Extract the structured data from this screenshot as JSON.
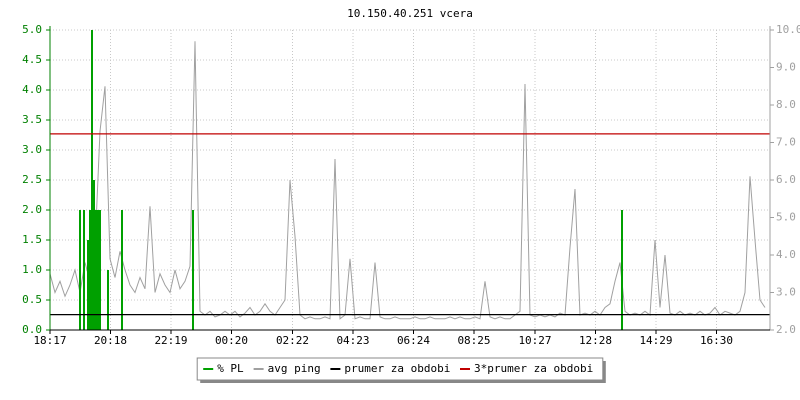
{
  "chart_data": {
    "type": "line",
    "title": "10.150.40.251 vcera",
    "xlim": [
      0,
      1440
    ],
    "xticks": [
      {
        "value": 0,
        "label": "18:17"
      },
      {
        "value": 121,
        "label": "20:18"
      },
      {
        "value": 242,
        "label": "22:19"
      },
      {
        "value": 363,
        "label": "00:20"
      },
      {
        "value": 485,
        "label": "02:22"
      },
      {
        "value": 606,
        "label": "04:23"
      },
      {
        "value": 727,
        "label": "06:24"
      },
      {
        "value": 848,
        "label": "08:25"
      },
      {
        "value": 970,
        "label": "10:27"
      },
      {
        "value": 1091,
        "label": "12:28"
      },
      {
        "value": 1212,
        "label": "14:29"
      },
      {
        "value": 1333,
        "label": "16:30"
      }
    ],
    "ylim": [
      0,
      5
    ],
    "yticks": [
      {
        "value": 0,
        "label": "0.0"
      },
      {
        "value": 0.5,
        "label": "0.5"
      },
      {
        "value": 1,
        "label": "1.0"
      },
      {
        "value": 1.5,
        "label": "1.5"
      },
      {
        "value": 2,
        "label": "2.0"
      },
      {
        "value": 2.5,
        "label": "2.5"
      },
      {
        "value": 3,
        "label": "3.0"
      },
      {
        "value": 3.5,
        "label": "3.5"
      },
      {
        "value": 4,
        "label": "4.0"
      },
      {
        "value": 4.5,
        "label": "4.5"
      },
      {
        "value": 5,
        "label": "5.0"
      }
    ],
    "y2lim": [
      2,
      10
    ],
    "y2ticks": [
      {
        "value": 2,
        "label": "2.0"
      },
      {
        "value": 3,
        "label": "3.0"
      },
      {
        "value": 4,
        "label": "4.0"
      },
      {
        "value": 5,
        "label": "5.0"
      },
      {
        "value": 6,
        "label": "6.0"
      },
      {
        "value": 7,
        "label": "7.0"
      },
      {
        "value": 8,
        "label": "8.0"
      },
      {
        "value": 9,
        "label": "9.0"
      },
      {
        "value": 10,
        "label": "10.0"
      }
    ],
    "grid": true,
    "yaxis_color": "#008000",
    "y2axis_color": "#a0a0a0",
    "series": [
      {
        "name": "% PL",
        "type": "bar",
        "color": "#00a000",
        "x": [
          60,
          68,
          76,
          80,
          84,
          88,
          92,
          96,
          100,
          116,
          144,
          286,
          1144
        ],
        "values": [
          2.0,
          2.0,
          1.5,
          2.0,
          5.0,
          2.5,
          2.0,
          2.0,
          2.0,
          1.0,
          2.0,
          2.0,
          2.0
        ]
      },
      {
        "name": "avg ping",
        "type": "line",
        "color": "#a0a0a0",
        "axis": "y2",
        "x": [
          0,
          10,
          20,
          30,
          40,
          50,
          60,
          70,
          80,
          90,
          100,
          110,
          120,
          130,
          140,
          150,
          160,
          170,
          180,
          190,
          200,
          210,
          220,
          230,
          240,
          250,
          260,
          270,
          280,
          290,
          300,
          310,
          320,
          330,
          340,
          350,
          360,
          370,
          380,
          390,
          400,
          410,
          420,
          430,
          440,
          450,
          460,
          470,
          480,
          490,
          500,
          510,
          520,
          530,
          540,
          550,
          560,
          570,
          580,
          590,
          600,
          610,
          620,
          630,
          640,
          650,
          660,
          670,
          680,
          690,
          700,
          710,
          720,
          730,
          740,
          750,
          760,
          770,
          780,
          790,
          800,
          810,
          820,
          830,
          840,
          850,
          860,
          870,
          880,
          890,
          900,
          910,
          920,
          930,
          940,
          950,
          960,
          970,
          980,
          990,
          1000,
          1010,
          1020,
          1030,
          1040,
          1050,
          1060,
          1070,
          1080,
          1090,
          1100,
          1110,
          1120,
          1130,
          1140,
          1150,
          1160,
          1170,
          1180,
          1190,
          1200,
          1210,
          1220,
          1230,
          1240,
          1250,
          1260,
          1270,
          1280,
          1290,
          1300,
          1310,
          1320,
          1330,
          1340,
          1350,
          1360,
          1370,
          1380,
          1390,
          1400,
          1410,
          1420,
          1430
        ],
        "values": [
          3.5,
          3.0,
          3.3,
          2.9,
          3.2,
          3.6,
          3.0,
          3.8,
          3.3,
          4.2,
          7.3,
          8.5,
          3.9,
          3.4,
          4.1,
          3.6,
          3.2,
          3.0,
          3.4,
          3.1,
          5.3,
          3.0,
          3.5,
          3.2,
          3.0,
          3.6,
          3.1,
          3.3,
          3.7,
          9.7,
          2.5,
          2.4,
          2.5,
          2.35,
          2.4,
          2.5,
          2.4,
          2.5,
          2.35,
          2.45,
          2.6,
          2.4,
          2.5,
          2.7,
          2.5,
          2.4,
          2.6,
          2.8,
          6.0,
          4.5,
          2.4,
          2.3,
          2.35,
          2.3,
          2.3,
          2.35,
          2.3,
          6.56,
          2.3,
          2.4,
          3.9,
          2.3,
          2.35,
          2.3,
          2.3,
          3.8,
          2.35,
          2.3,
          2.3,
          2.35,
          2.3,
          2.3,
          2.3,
          2.35,
          2.3,
          2.3,
          2.35,
          2.3,
          2.3,
          2.3,
          2.35,
          2.3,
          2.35,
          2.3,
          2.3,
          2.35,
          2.3,
          3.3,
          2.35,
          2.3,
          2.35,
          2.3,
          2.3,
          2.4,
          2.5,
          8.56,
          2.4,
          2.35,
          2.4,
          2.35,
          2.4,
          2.35,
          2.45,
          2.4,
          4.2,
          5.76,
          2.4,
          2.45,
          2.4,
          2.5,
          2.4,
          2.6,
          2.7,
          3.3,
          3.8,
          2.5,
          2.4,
          2.45,
          2.4,
          2.5,
          2.4,
          4.4,
          2.6,
          4.0,
          2.45,
          2.4,
          2.5,
          2.4,
          2.45,
          2.4,
          2.5,
          2.4,
          2.45,
          2.6,
          2.4,
          2.5,
          2.45,
          2.4,
          2.5,
          3.0,
          6.1,
          4.4,
          2.8,
          2.6
        ]
      },
      {
        "name": "prumer za obdobi",
        "type": "hline",
        "color": "#000000",
        "axis": "y2",
        "values": [
          2.41
        ]
      },
      {
        "name": "3*prumer za obdobi",
        "type": "hline",
        "color": "#c00000",
        "axis": "y2",
        "values": [
          7.23
        ]
      }
    ]
  }
}
